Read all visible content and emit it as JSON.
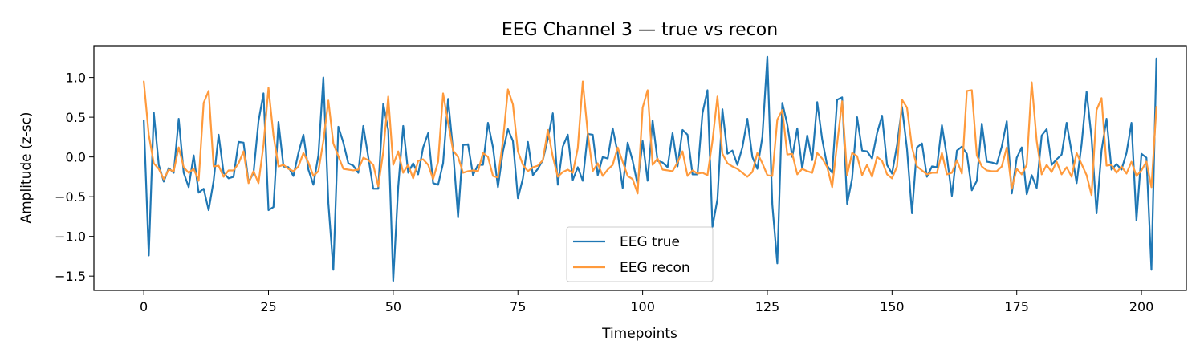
{
  "chart_data": {
    "type": "line",
    "title": "EEG Channel 3 — true vs recon",
    "xlabel": "Timepoints",
    "ylabel": "Amplitude (z-sc)",
    "xlim": [
      -10,
      209
    ],
    "ylim": [
      -1.68,
      1.4
    ],
    "xticks": [
      0,
      25,
      50,
      75,
      100,
      125,
      150,
      175,
      200
    ],
    "yticks": [
      -1.5,
      -1.0,
      -0.5,
      0.0,
      0.5,
      1.0
    ],
    "grid": false,
    "legend_position": "bottom-center",
    "series": [
      {
        "name": "EEG true",
        "color": "#1f77b4",
        "values": [
          0.46,
          -1.24,
          0.56,
          -0.1,
          -0.31,
          -0.14,
          -0.2,
          0.48,
          -0.2,
          -0.38,
          0.02,
          -0.45,
          -0.4,
          -0.67,
          -0.3,
          0.28,
          -0.2,
          -0.27,
          -0.25,
          0.19,
          0.18,
          -0.32,
          -0.2,
          0.45,
          0.8,
          -0.67,
          -0.63,
          0.44,
          -0.12,
          -0.13,
          -0.24,
          0.05,
          0.28,
          -0.16,
          -0.35,
          0.02,
          1.0,
          -0.58,
          -1.42,
          0.38,
          0.18,
          -0.08,
          -0.11,
          -0.2,
          0.39,
          0.0,
          -0.4,
          -0.4,
          0.67,
          0.34,
          -1.56,
          -0.38,
          0.39,
          -0.2,
          -0.08,
          -0.22,
          0.12,
          0.3,
          -0.33,
          -0.35,
          -0.08,
          0.73,
          0.08,
          -0.76,
          0.15,
          0.16,
          -0.23,
          -0.1,
          -0.1,
          0.43,
          0.12,
          -0.38,
          0.07,
          0.35,
          0.2,
          -0.52,
          -0.27,
          0.19,
          -0.23,
          -0.15,
          -0.04,
          0.23,
          0.55,
          -0.35,
          0.13,
          0.28,
          -0.29,
          -0.13,
          -0.3,
          0.29,
          0.28,
          -0.23,
          0.0,
          -0.02,
          0.36,
          0.05,
          -0.39,
          0.18,
          -0.05,
          -0.35,
          0.2,
          -0.3,
          0.46,
          -0.05,
          -0.07,
          -0.13,
          0.3,
          -0.12,
          0.34,
          0.28,
          -0.22,
          -0.22,
          0.55,
          0.84,
          -0.88,
          -0.53,
          0.6,
          0.04,
          0.08,
          -0.1,
          0.12,
          0.48,
          0.0,
          -0.15,
          0.25,
          1.26,
          -0.6,
          -1.34,
          0.68,
          0.41,
          0.0,
          0.36,
          -0.15,
          0.27,
          -0.04,
          0.69,
          0.22,
          -0.11,
          -0.2,
          0.72,
          0.75,
          -0.59,
          -0.27,
          0.5,
          0.08,
          0.07,
          -0.02,
          0.3,
          0.52,
          -0.1,
          -0.21,
          0.15,
          0.63,
          0.1,
          -0.71,
          0.12,
          0.17,
          -0.25,
          -0.12,
          -0.13,
          0.4,
          0.0,
          -0.49,
          0.08,
          0.13,
          0.04,
          -0.42,
          -0.3,
          0.42,
          -0.06,
          -0.07,
          -0.09,
          0.13,
          0.45,
          -0.46,
          -0.01,
          0.12,
          -0.47,
          -0.23,
          -0.39,
          0.27,
          0.35,
          -0.1,
          -0.03,
          0.03,
          0.43,
          0.06,
          -0.33,
          0.16,
          0.82,
          0.24,
          -0.71,
          0.08,
          0.48,
          -0.16,
          -0.09,
          -0.16,
          0.05,
          0.43,
          -0.8,
          0.04,
          -0.01,
          -1.42,
          1.24
        ]
      },
      {
        "name": "EEG recon",
        "color": "#ff9a3c",
        "values": [
          0.95,
          0.28,
          -0.08,
          -0.15,
          -0.28,
          -0.16,
          -0.18,
          0.12,
          -0.13,
          -0.2,
          -0.15,
          -0.3,
          0.68,
          0.83,
          -0.12,
          -0.11,
          -0.25,
          -0.17,
          -0.17,
          -0.08,
          0.07,
          -0.33,
          -0.18,
          -0.33,
          0.15,
          0.87,
          0.27,
          -0.12,
          -0.1,
          -0.15,
          -0.18,
          -0.12,
          0.05,
          -0.07,
          -0.24,
          -0.18,
          0.2,
          0.71,
          0.17,
          0.01,
          -0.15,
          -0.16,
          -0.17,
          -0.16,
          -0.01,
          -0.04,
          -0.1,
          -0.37,
          0.06,
          0.76,
          -0.1,
          0.07,
          -0.2,
          -0.1,
          -0.27,
          -0.05,
          -0.03,
          -0.1,
          -0.28,
          -0.06,
          0.8,
          0.43,
          0.08,
          0.0,
          -0.2,
          -0.18,
          -0.17,
          -0.18,
          0.05,
          0.0,
          -0.24,
          -0.26,
          0.2,
          0.85,
          0.66,
          0.07,
          -0.1,
          -0.18,
          -0.13,
          -0.11,
          -0.04,
          0.34,
          0.0,
          -0.25,
          -0.19,
          -0.16,
          -0.2,
          0.11,
          0.95,
          0.3,
          -0.18,
          -0.08,
          -0.24,
          -0.16,
          -0.1,
          0.12,
          -0.06,
          -0.24,
          -0.28,
          -0.46,
          0.62,
          0.84,
          -0.1,
          -0.02,
          -0.16,
          -0.17,
          -0.18,
          -0.07,
          0.07,
          -0.24,
          -0.17,
          -0.21,
          -0.2,
          -0.23,
          0.2,
          0.76,
          0.04,
          -0.08,
          -0.12,
          -0.15,
          -0.2,
          -0.25,
          -0.19,
          0.05,
          -0.08,
          -0.23,
          -0.24,
          0.47,
          0.59,
          0.03,
          0.04,
          -0.22,
          -0.15,
          -0.18,
          -0.2,
          0.05,
          -0.02,
          -0.13,
          -0.38,
          0.17,
          0.7,
          -0.23,
          0.05,
          0.01,
          -0.23,
          -0.1,
          -0.25,
          0.0,
          -0.05,
          -0.22,
          -0.27,
          -0.12,
          0.72,
          0.62,
          0.12,
          -0.12,
          -0.17,
          -0.22,
          -0.2,
          -0.2,
          0.05,
          -0.22,
          -0.2,
          -0.04,
          -0.21,
          0.83,
          0.84,
          0.02,
          -0.12,
          -0.17,
          -0.18,
          -0.18,
          -0.12,
          0.12,
          -0.4,
          -0.15,
          -0.22,
          -0.1,
          0.94,
          0.2,
          -0.22,
          -0.1,
          -0.19,
          -0.06,
          -0.22,
          -0.13,
          -0.25,
          0.05,
          -0.09,
          -0.23,
          -0.48,
          0.59,
          0.74,
          -0.11,
          -0.1,
          -0.2,
          -0.12,
          -0.21,
          -0.06,
          -0.24,
          -0.17,
          -0.06,
          -0.38,
          0.63
        ]
      }
    ]
  }
}
